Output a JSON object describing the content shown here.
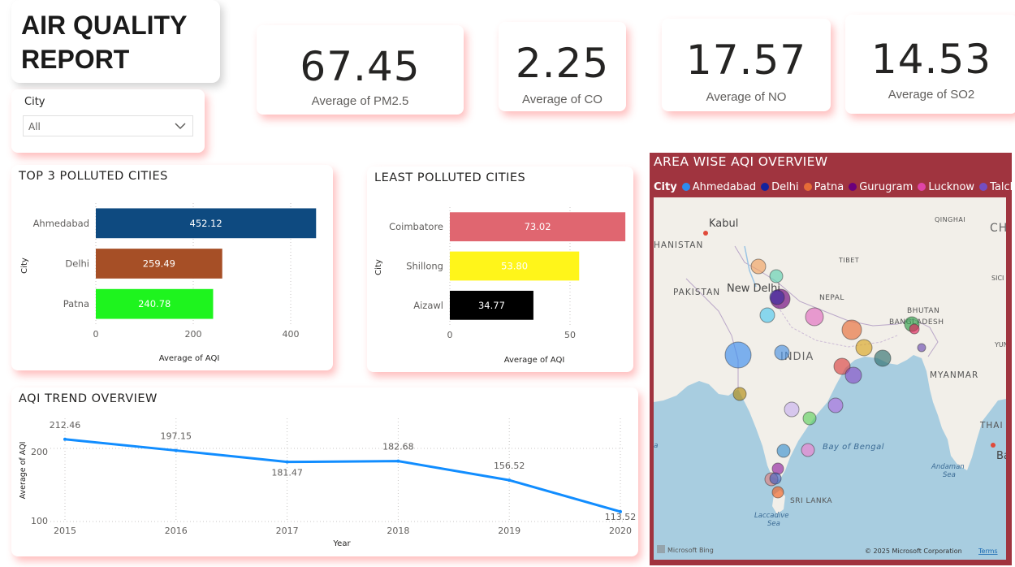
{
  "report": {
    "title": "AIR QUALITY REPORT"
  },
  "slicer": {
    "label": "City",
    "value": "All"
  },
  "kpis": [
    {
      "value": "67.45",
      "label": "Average of PM2.5"
    },
    {
      "value": "2.25",
      "label": "Average of CO"
    },
    {
      "value": "17.57",
      "label": "Average of NO"
    },
    {
      "value": "14.53",
      "label": "Average of SO2"
    }
  ],
  "top_polluted": {
    "title": "TOP 3 POLLUTED CITIES",
    "ylabel": "City",
    "xlabel": "Average of AQI",
    "ticks": [
      "0",
      "200",
      "400"
    ]
  },
  "least_polluted": {
    "title": "LEAST POLLUTED CITIES",
    "ylabel": "City",
    "xlabel": "Average of AQI",
    "ticks": [
      "0",
      "50"
    ]
  },
  "trend": {
    "title": "AQI TREND OVERVIEW",
    "ylabel": "Average of AQI",
    "xlabel": "Year",
    "yticks": [
      "100",
      "200"
    ]
  },
  "map": {
    "title": "AREA WISE AQI OVERVIEW",
    "legend_title": "City",
    "legend": [
      {
        "name": "Ahmedabad",
        "color": "#2b8cf0"
      },
      {
        "name": "Delhi",
        "color": "#12239e"
      },
      {
        "name": "Patna",
        "color": "#e66c37"
      },
      {
        "name": "Gurugram",
        "color": "#6b007b"
      },
      {
        "name": "Lucknow",
        "color": "#e044a7"
      },
      {
        "name": "Talcher",
        "color": "#744ec2"
      }
    ],
    "labels": {
      "kabul": "Kabul",
      "afghanistan": "HANISTAN",
      "qinghai": "QINGHAI",
      "ch": "CH",
      "tibet": "TIBET",
      "sichuan": "SICI",
      "pakistan": "PAKISTAN",
      "new_delhi": "New Delhi",
      "nepal": "NEPAL",
      "bhutan": "BHUTAN",
      "bangladesh": "BANGLADESH",
      "yun": "YUN",
      "india": "INDIA",
      "myanmar": "MYANMAR",
      "thai": "THAI",
      "bay_of_bengal": "Bay of Bengal",
      "andaman": "Andaman",
      "sea": "Sea",
      "sri_lanka": "SRI LANKA",
      "laccadive": "Laccadive",
      "laccadive_sea": "Sea",
      "ba": "Ba",
      "sea_left": "a",
      "bing": "Microsoft Bing",
      "copyright": "© 2025 Microsoft Corporation",
      "terms": "Terms"
    },
    "bubbles": [
      {
        "color": "#f0a060"
      },
      {
        "color": "#5ed0b0"
      },
      {
        "color": "#6b007b"
      },
      {
        "color": "#3a2a9e"
      },
      {
        "color": "#4fc7f0"
      },
      {
        "color": "#e06ac0"
      },
      {
        "color": "#e66c37"
      },
      {
        "color": "#2e9e4a"
      },
      {
        "color": "#e0205a"
      },
      {
        "color": "#4a90e2"
      },
      {
        "color": "#3a8cf0"
      },
      {
        "color": "#d9a520"
      },
      {
        "color": "#2e6e6e"
      },
      {
        "color": "#d94040"
      },
      {
        "color": "#8a50c8"
      },
      {
        "color": "#6a4ab0"
      },
      {
        "color": "#b08a10"
      },
      {
        "color": "#c8b0f0"
      },
      {
        "color": "#60d060"
      },
      {
        "color": "#b070e0"
      },
      {
        "color": "#3a90d0"
      },
      {
        "color": "#f080d0"
      },
      {
        "color": "#9020a0"
      },
      {
        "color": "#e08080"
      },
      {
        "color": "#4060c0"
      },
      {
        "color": "#f06020"
      }
    ]
  },
  "chart_data": [
    {
      "type": "bar",
      "title": "TOP 3 POLLUTED CITIES",
      "xlabel": "Average of AQI",
      "ylabel": "City",
      "categories": [
        "Ahmedabad",
        "Delhi",
        "Patna"
      ],
      "values": [
        452.12,
        259.49,
        240.78
      ],
      "labels": [
        "452.12",
        "259.49",
        "240.78"
      ],
      "colors": [
        "#0e4a80",
        "#a64f26",
        "#1ef41e"
      ],
      "xlim": [
        0,
        500
      ]
    },
    {
      "type": "bar",
      "title": "LEAST POLLUTED CITIES",
      "xlabel": "Average of AQI",
      "ylabel": "City",
      "categories": [
        "Coimbatore",
        "Shillong",
        "Aizawl"
      ],
      "values": [
        73.02,
        53.8,
        34.77
      ],
      "labels": [
        "73.02",
        "53.80",
        "34.77"
      ],
      "colors": [
        "#e06670",
        "#fff51a",
        "#000000"
      ],
      "xlim": [
        0,
        75
      ]
    },
    {
      "type": "line",
      "title": "AQI TREND OVERVIEW",
      "xlabel": "Year",
      "ylabel": "Average of AQI",
      "x": [
        "2015",
        "2016",
        "2017",
        "2018",
        "2019",
        "2020"
      ],
      "values": [
        212.46,
        197.15,
        181.47,
        182.68,
        156.52,
        113.52
      ],
      "labels": [
        "212.46",
        "197.15",
        "181.47",
        "182.68",
        "156.52",
        "113.52"
      ],
      "ylim": [
        100,
        230
      ],
      "color": "#118dff"
    }
  ]
}
